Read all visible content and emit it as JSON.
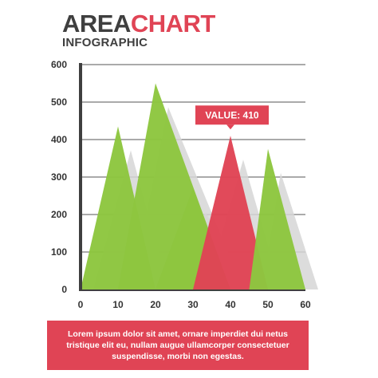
{
  "header": {
    "title_part1": "AREA",
    "title_part2": "CHART",
    "subtitle": "INFOGRAPHIC"
  },
  "colors": {
    "green": "#8dc63f",
    "red": "#e04455",
    "shadow": "#d6d6d6",
    "axis": "#3f3f3f",
    "grid": "#555555"
  },
  "chart_data": {
    "type": "area",
    "title": "AREA CHART INFOGRAPHIC",
    "xlabel": "",
    "ylabel": "",
    "xlim": [
      0,
      60
    ],
    "ylim": [
      0,
      600
    ],
    "x_ticks": [
      "0",
      "10",
      "20",
      "30",
      "40",
      "50",
      "60"
    ],
    "y_ticks": [
      "0",
      "100",
      "200",
      "300",
      "400",
      "500",
      "600"
    ],
    "grid": true,
    "series": [
      {
        "color": "#8dc63f",
        "points": [
          [
            0,
            0
          ],
          [
            10,
            435
          ],
          [
            20,
            0
          ]
        ]
      },
      {
        "color": "#8dc63f",
        "points": [
          [
            10,
            0
          ],
          [
            20,
            550
          ],
          [
            40,
            0
          ]
        ]
      },
      {
        "color": "#8dc63f",
        "points": [
          [
            20,
            0
          ],
          [
            30,
            270
          ],
          [
            40,
            0
          ]
        ]
      },
      {
        "color": "#e04455",
        "points": [
          [
            30,
            0
          ],
          [
            40,
            410
          ],
          [
            50,
            0
          ]
        ]
      },
      {
        "color": "#8dc63f",
        "points": [
          [
            45,
            0
          ],
          [
            50,
            375
          ],
          [
            60,
            0
          ]
        ]
      }
    ],
    "annotation": {
      "text": "VALUE: 410",
      "x": 40,
      "y": 410
    }
  },
  "footer": {
    "text": "Lorem ipsum dolor sit amet, ornare imperdiet dui netus tristique elit eu, nullam augue ullamcorper consectetuer suspendisse, morbi non egestas."
  }
}
